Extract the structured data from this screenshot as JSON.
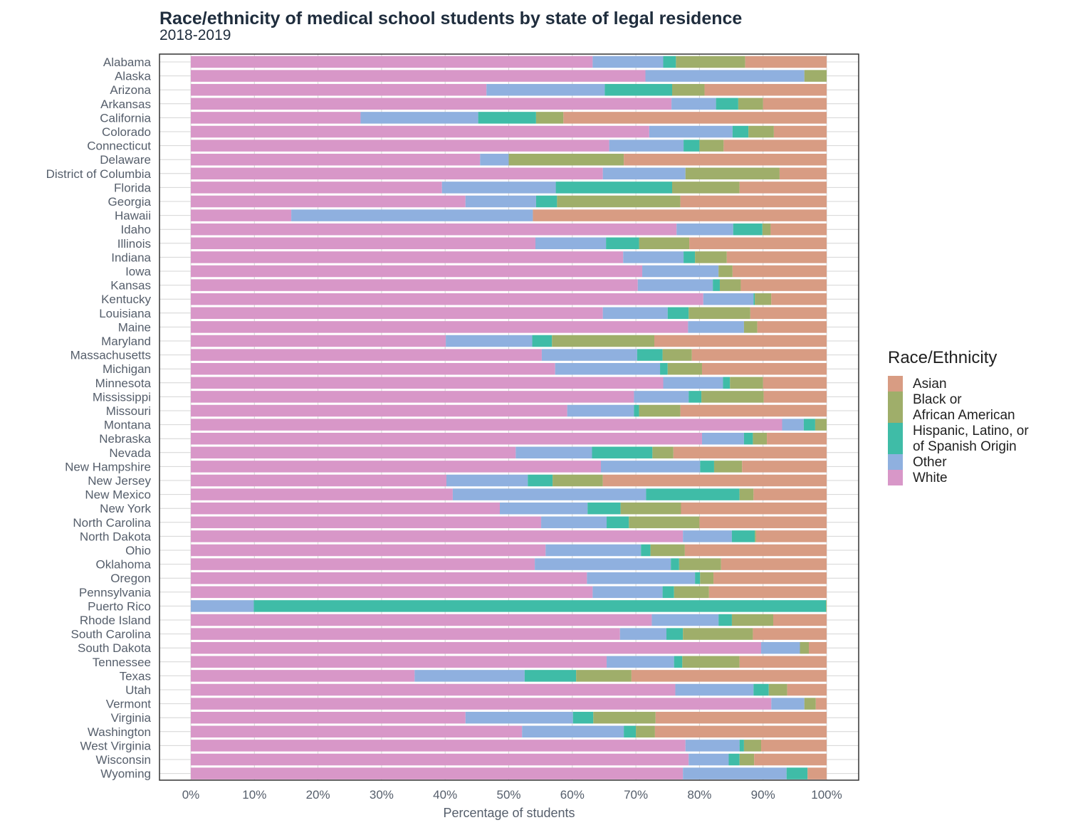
{
  "chart_data": {
    "type": "bar",
    "orientation": "horizontal",
    "stacked": true,
    "title": "Race/ethnicity of medical school students by state of legal residence",
    "subtitle": "2018-2019",
    "xlabel": "Percentage of students",
    "ylabel": "",
    "xlim": [
      0,
      100
    ],
    "x_ticks": [
      "0%",
      "10%",
      "20%",
      "30%",
      "40%",
      "50%",
      "60%",
      "70%",
      "80%",
      "90%",
      "100%"
    ],
    "grid": true,
    "legend": {
      "title": "Race/Ethnicity",
      "position": "right",
      "entries": [
        {
          "key": "asian",
          "lines": [
            "Asian"
          ]
        },
        {
          "key": "black",
          "lines": [
            "Black or",
            "African American"
          ]
        },
        {
          "key": "hispanic",
          "lines": [
            "Hispanic, Latino, or",
            "of Spanish Origin"
          ]
        },
        {
          "key": "other",
          "lines": [
            "Other"
          ]
        },
        {
          "key": "white",
          "lines": [
            "White"
          ]
        }
      ]
    },
    "colors": {
      "white": "#d897c8",
      "other": "#8fb0df",
      "hispanic": "#3fbca7",
      "black": "#9fae6a",
      "asian": "#d89c83"
    },
    "stack_order": [
      "white",
      "other",
      "hispanic",
      "black",
      "asian"
    ],
    "categories": [
      "Alabama",
      "Alaska",
      "Arizona",
      "Arkansas",
      "California",
      "Colorado",
      "Connecticut",
      "Delaware",
      "District of Columbia",
      "Florida",
      "Georgia",
      "Hawaii",
      "Idaho",
      "Illinois",
      "Indiana",
      "Iowa",
      "Kansas",
      "Kentucky",
      "Louisiana",
      "Maine",
      "Maryland",
      "Massachusetts",
      "Michigan",
      "Minnesota",
      "Mississippi",
      "Missouri",
      "Montana",
      "Nebraska",
      "Nevada",
      "New Hampshire",
      "New Jersey",
      "New Mexico",
      "New York",
      "North Carolina",
      "North Dakota",
      "Ohio",
      "Oklahoma",
      "Oregon",
      "Pennsylvania",
      "Puerto Rico",
      "Rhode Island",
      "South Carolina",
      "South Dakota",
      "Tennessee",
      "Texas",
      "Utah",
      "Vermont",
      "Virginia",
      "Washington",
      "West Virginia",
      "Wisconsin",
      "Wyoming"
    ],
    "series": [
      {
        "key": "white",
        "values": [
          63.2,
          71.5,
          46.5,
          75.6,
          26.7,
          72.1,
          65.8,
          45.5,
          64.8,
          39.5,
          43.2,
          15.8,
          76.4,
          54.2,
          68.0,
          71.0,
          70.3,
          80.6,
          64.8,
          78.2,
          40.1,
          55.2,
          57.3,
          74.3,
          69.7,
          59.2,
          93.0,
          80.4,
          51.1,
          64.5,
          40.2,
          41.2,
          48.6,
          55.1,
          77.4,
          55.8,
          54.1,
          62.3,
          63.2,
          0.0,
          72.5,
          67.5,
          89.7,
          65.4,
          35.2,
          76.2,
          91.3,
          43.2,
          52.1,
          77.8,
          78.3,
          77.4
        ]
      },
      {
        "key": "other",
        "values": [
          11.1,
          25.0,
          18.6,
          7.0,
          18.5,
          13.1,
          11.7,
          4.5,
          13.0,
          17.9,
          11.1,
          38.0,
          8.9,
          11.1,
          9.5,
          12.0,
          11.8,
          7.9,
          10.2,
          8.8,
          13.6,
          15.0,
          16.5,
          9.4,
          8.6,
          10.5,
          3.4,
          6.6,
          12.0,
          15.6,
          12.8,
          30.4,
          13.8,
          10.3,
          7.7,
          15.0,
          21.4,
          17.0,
          11.0,
          9.9,
          10.5,
          7.3,
          6.1,
          10.6,
          17.3,
          12.3,
          5.2,
          16.9,
          16.0,
          8.5,
          6.3,
          16.3
        ]
      },
      {
        "key": "hispanic",
        "values": [
          2.0,
          0.0,
          10.6,
          3.5,
          9.1,
          2.5,
          2.5,
          0.0,
          0.0,
          18.3,
          3.3,
          0.0,
          4.6,
          5.2,
          1.8,
          0.0,
          1.1,
          0.2,
          3.3,
          0.0,
          3.1,
          4.0,
          1.2,
          1.1,
          2.0,
          0.8,
          1.8,
          1.4,
          9.5,
          2.2,
          3.9,
          14.7,
          5.2,
          3.5,
          3.6,
          1.5,
          1.3,
          0.8,
          1.8,
          90.0,
          2.1,
          2.6,
          0.0,
          1.3,
          8.1,
          2.4,
          0.0,
          3.2,
          1.9,
          0.7,
          1.7,
          3.3
        ]
      },
      {
        "key": "black",
        "values": [
          10.9,
          3.5,
          5.1,
          3.9,
          4.3,
          4.0,
          3.8,
          18.1,
          14.8,
          10.6,
          19.4,
          0.0,
          1.3,
          7.9,
          5.0,
          2.2,
          3.3,
          2.6,
          9.7,
          2.1,
          16.1,
          4.6,
          5.4,
          5.2,
          9.8,
          6.5,
          1.8,
          2.2,
          3.3,
          4.4,
          7.9,
          2.2,
          9.5,
          11.1,
          0.2,
          5.4,
          6.6,
          2.1,
          5.5,
          0.1,
          6.5,
          11.0,
          1.4,
          9.0,
          8.7,
          2.9,
          1.8,
          9.8,
          3.0,
          2.7,
          2.3,
          0.0
        ]
      },
      {
        "key": "asian",
        "values": [
          12.8,
          0.0,
          19.2,
          10.0,
          41.4,
          8.3,
          16.2,
          31.9,
          7.4,
          13.7,
          23.0,
          46.2,
          8.8,
          21.6,
          15.7,
          14.8,
          13.5,
          8.7,
          12.0,
          10.9,
          27.1,
          21.2,
          19.6,
          10.0,
          9.9,
          23.0,
          0.0,
          9.4,
          24.1,
          13.3,
          35.2,
          11.5,
          22.9,
          20.0,
          11.1,
          22.3,
          16.6,
          17.8,
          18.5,
          0.0,
          8.4,
          11.6,
          2.8,
          13.7,
          30.7,
          6.2,
          1.7,
          26.9,
          27.0,
          10.3,
          11.4,
          3.0
        ]
      }
    ]
  }
}
